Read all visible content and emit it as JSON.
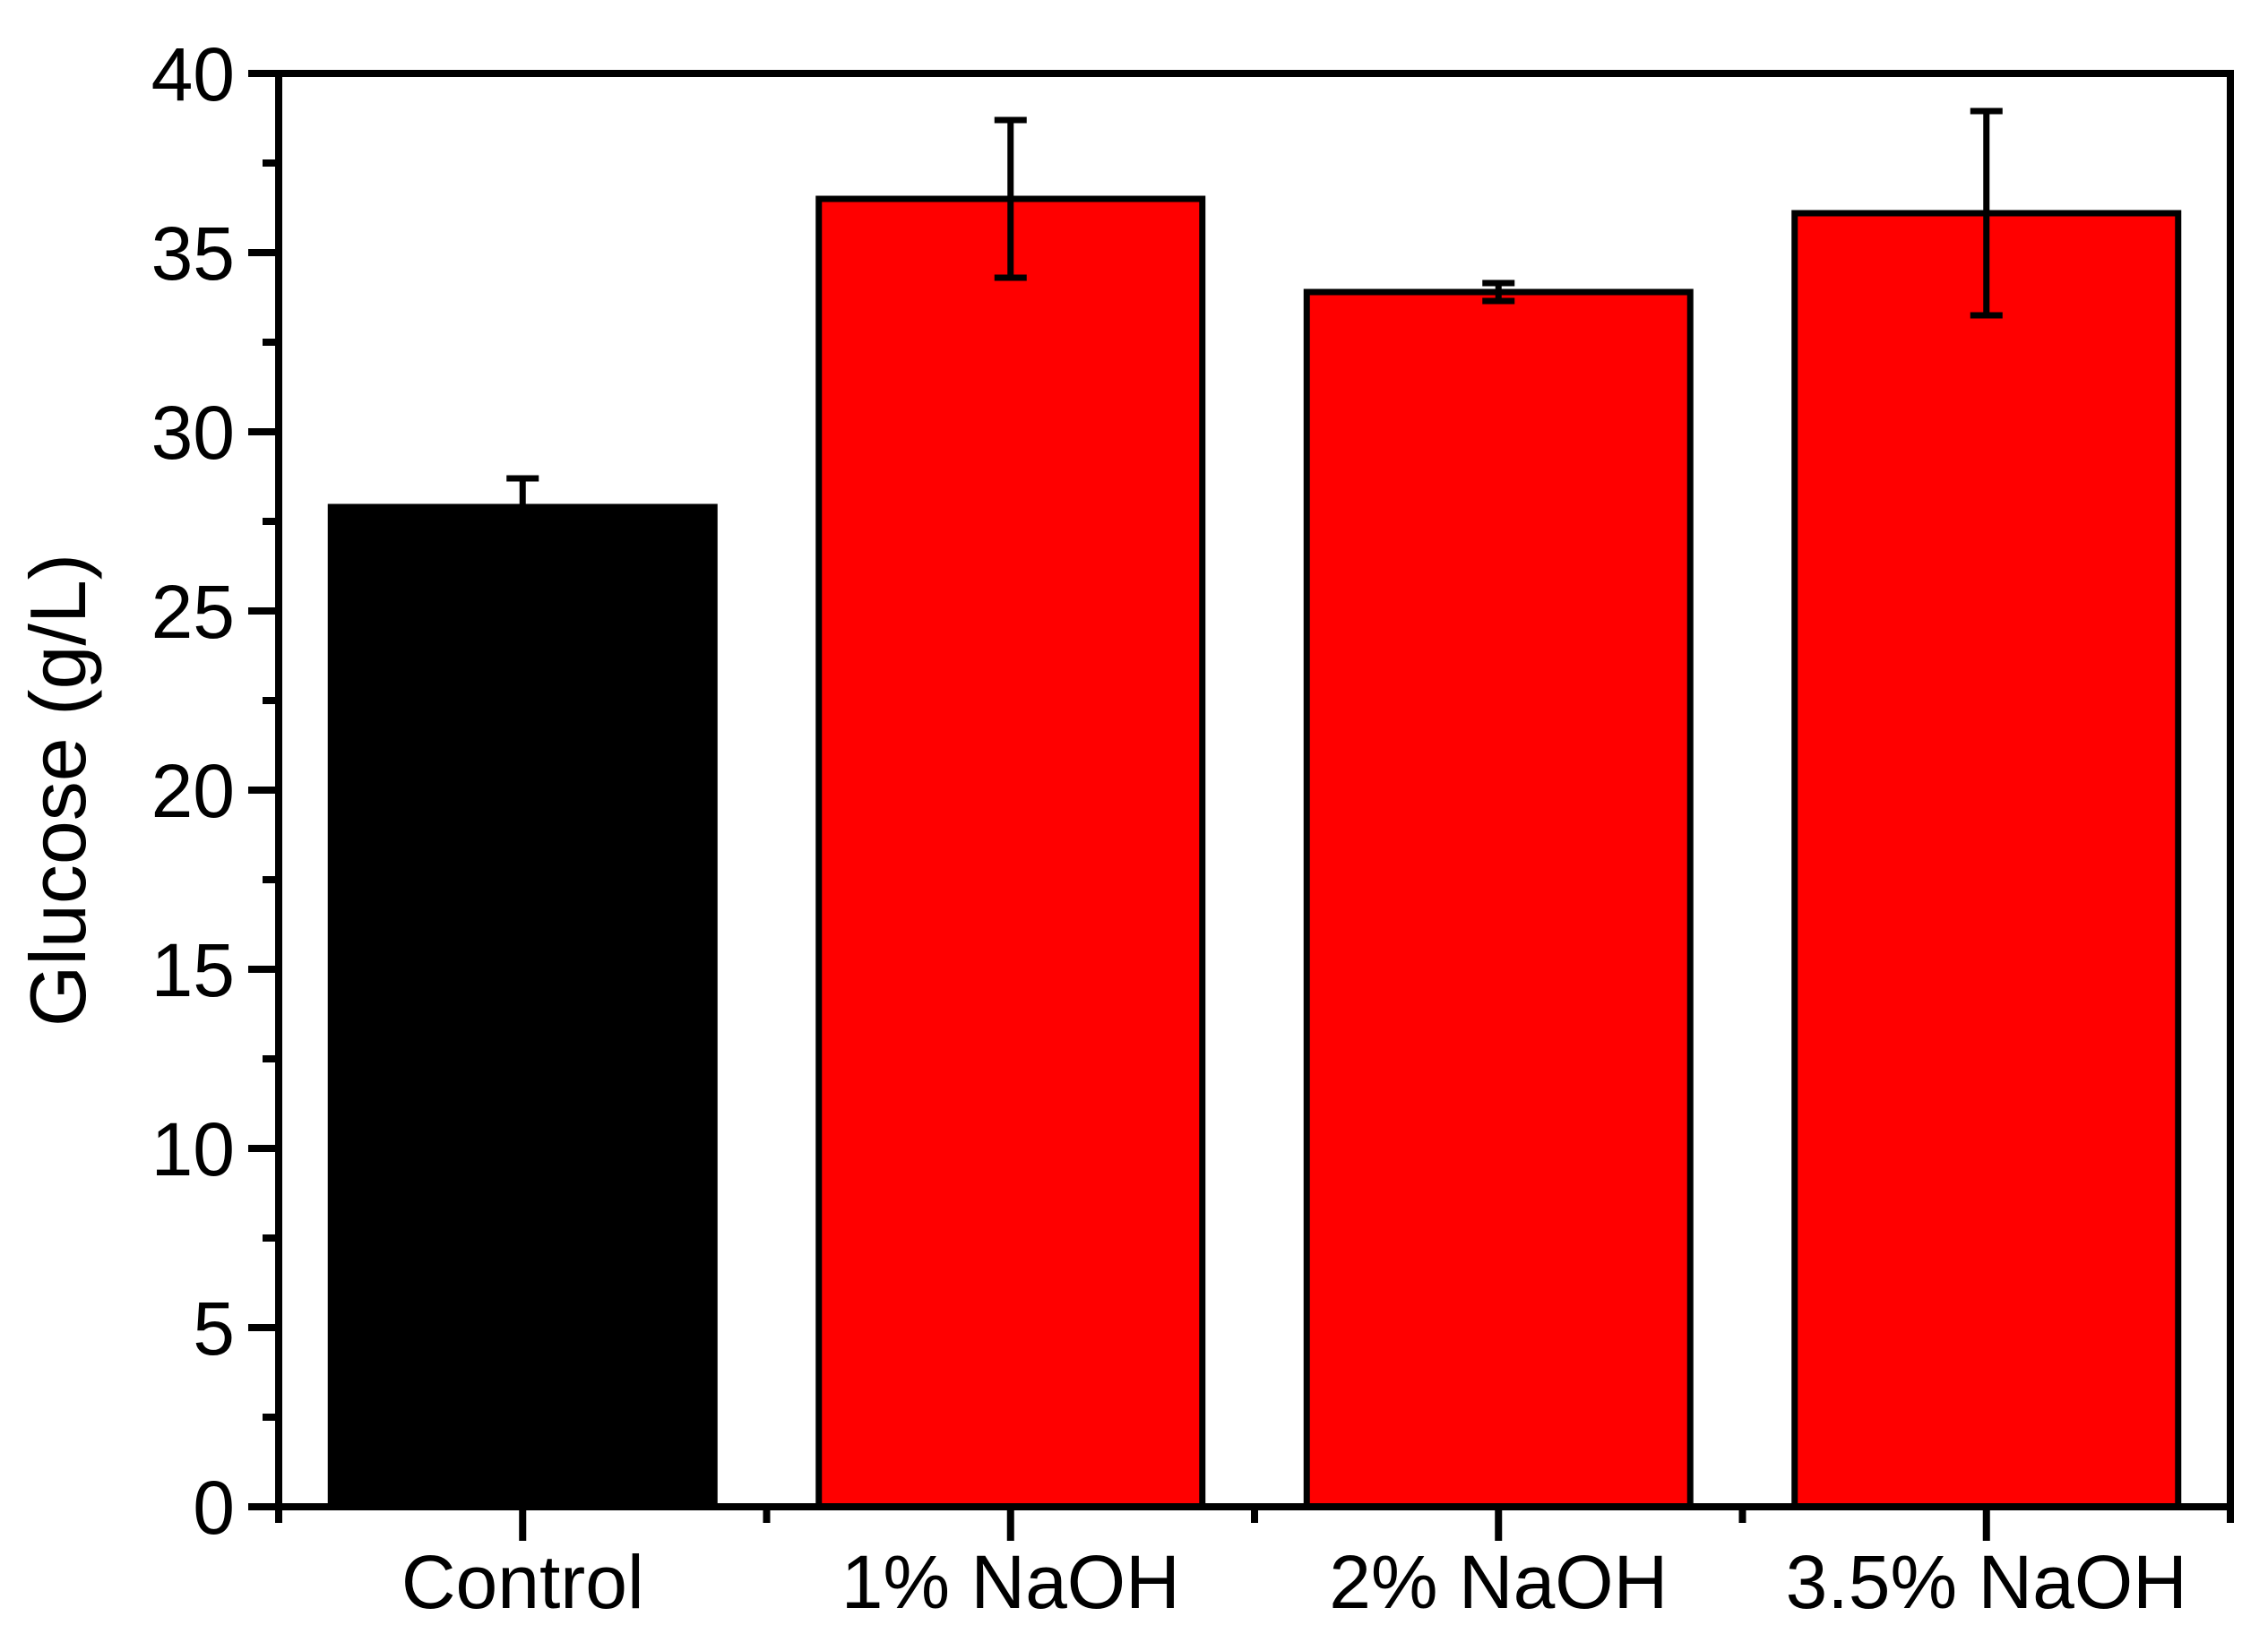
{
  "chart_data": {
    "type": "bar",
    "title": "",
    "ylabel": "Glucose (g/L)",
    "xlabel": "",
    "categories": [
      "Control",
      "1% NaOH",
      "2% NaOH",
      "3.5% NaOH"
    ],
    "values": [
      27.9,
      36.5,
      33.9,
      36.1
    ],
    "errors": [
      0.8,
      2.2,
      0.25,
      2.85
    ],
    "series": [
      {
        "name": "Glucose",
        "values": [
          27.9,
          36.5,
          33.9,
          36.1
        ],
        "errors": [
          0.8,
          2.2,
          0.25,
          2.85
        ]
      }
    ],
    "bar_colors": [
      "#000000",
      "#FF0000",
      "#FF0000",
      "#FF0000"
    ],
    "bar_border_color": "#000000",
    "error_bar_color": "#000000",
    "axis_color": "#000000",
    "background_color": "#FFFFFF",
    "ylim": [
      0,
      40
    ],
    "y_major_step": 5,
    "y_minor_step": 2.5,
    "y_tick_labels": [
      "0",
      "5",
      "10",
      "15",
      "20",
      "25",
      "30",
      "35",
      "40"
    ],
    "grid": "off",
    "legend": "none",
    "frame": "box",
    "ticks_direction": "out"
  }
}
